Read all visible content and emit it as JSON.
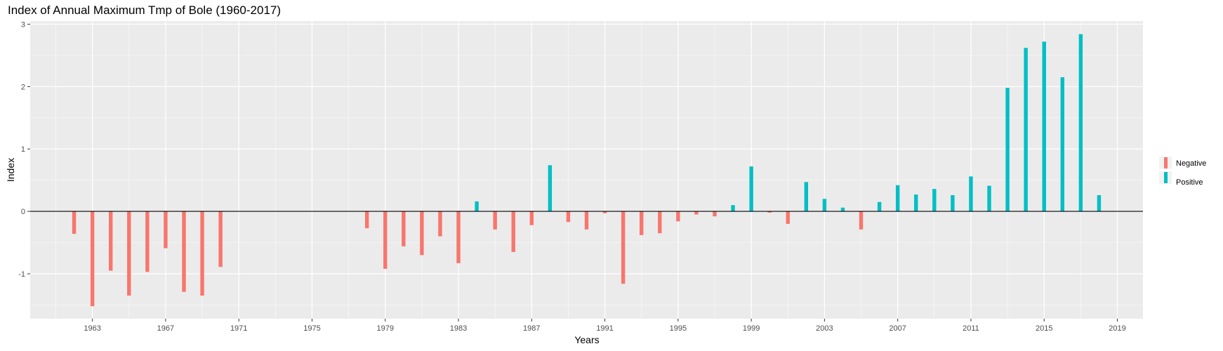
{
  "chart_data": {
    "type": "bar",
    "title": "Index of Annual Maximum Tmp of Bole (1960-2017)",
    "xlabel": "Years",
    "ylabel": "Index",
    "xlim": [
      1959.6,
      2020.4
    ],
    "ylim": [
      -1.72,
      3.05
    ],
    "x_ticks": [
      1963,
      1967,
      1971,
      1975,
      1979,
      1983,
      1987,
      1991,
      1995,
      1999,
      2003,
      2007,
      2011,
      2015,
      2019
    ],
    "y_ticks": [
      -1,
      0,
      1,
      2,
      3
    ],
    "x_tick_labels": [
      "1963",
      "1967",
      "1971",
      "1975",
      "1979",
      "1983",
      "1987",
      "1991",
      "1995",
      "1999",
      "2003",
      "2007",
      "2011",
      "2015",
      "2019"
    ],
    "y_tick_labels": [
      "-1",
      "0",
      "1",
      "2",
      "3"
    ],
    "grid": true,
    "legend_position": "right",
    "series": [
      {
        "name": "Negative",
        "color": "#F8766D"
      },
      {
        "name": "Positive",
        "color": "#00BFC4"
      }
    ],
    "points": [
      {
        "x": 1962,
        "y": -0.36
      },
      {
        "x": 1963,
        "y": -1.52
      },
      {
        "x": 1964,
        "y": -0.95
      },
      {
        "x": 1965,
        "y": -1.35
      },
      {
        "x": 1966,
        "y": -0.97
      },
      {
        "x": 1967,
        "y": -0.59
      },
      {
        "x": 1968,
        "y": -1.29
      },
      {
        "x": 1969,
        "y": -1.35
      },
      {
        "x": 1970,
        "y": -0.89
      },
      {
        "x": 1978,
        "y": -0.27
      },
      {
        "x": 1979,
        "y": -0.92
      },
      {
        "x": 1980,
        "y": -0.56
      },
      {
        "x": 1981,
        "y": -0.7
      },
      {
        "x": 1982,
        "y": -0.4
      },
      {
        "x": 1983,
        "y": -0.83
      },
      {
        "x": 1984,
        "y": 0.16
      },
      {
        "x": 1985,
        "y": -0.29
      },
      {
        "x": 1986,
        "y": -0.65
      },
      {
        "x": 1987,
        "y": -0.22
      },
      {
        "x": 1988,
        "y": 0.74
      },
      {
        "x": 1989,
        "y": -0.17
      },
      {
        "x": 1990,
        "y": -0.29
      },
      {
        "x": 1991,
        "y": -0.03
      },
      {
        "x": 1992,
        "y": -1.16
      },
      {
        "x": 1993,
        "y": -0.38
      },
      {
        "x": 1994,
        "y": -0.35
      },
      {
        "x": 1995,
        "y": -0.16
      },
      {
        "x": 1996,
        "y": -0.05
      },
      {
        "x": 1997,
        "y": -0.08
      },
      {
        "x": 1998,
        "y": 0.1
      },
      {
        "x": 1999,
        "y": 0.72
      },
      {
        "x": 2000,
        "y": -0.02
      },
      {
        "x": 2001,
        "y": -0.2
      },
      {
        "x": 2002,
        "y": 0.47
      },
      {
        "x": 2003,
        "y": 0.2
      },
      {
        "x": 2004,
        "y": 0.06
      },
      {
        "x": 2005,
        "y": -0.29
      },
      {
        "x": 2006,
        "y": 0.15
      },
      {
        "x": 2007,
        "y": 0.42
      },
      {
        "x": 2008,
        "y": 0.27
      },
      {
        "x": 2009,
        "y": 0.36
      },
      {
        "x": 2010,
        "y": 0.26
      },
      {
        "x": 2011,
        "y": 0.56
      },
      {
        "x": 2012,
        "y": 0.41
      },
      {
        "x": 2013,
        "y": 1.98
      },
      {
        "x": 2014,
        "y": 2.62
      },
      {
        "x": 2015,
        "y": 2.72
      },
      {
        "x": 2016,
        "y": 2.15
      },
      {
        "x": 2017,
        "y": 2.84
      },
      {
        "x": 2018,
        "y": 0.26
      }
    ]
  }
}
